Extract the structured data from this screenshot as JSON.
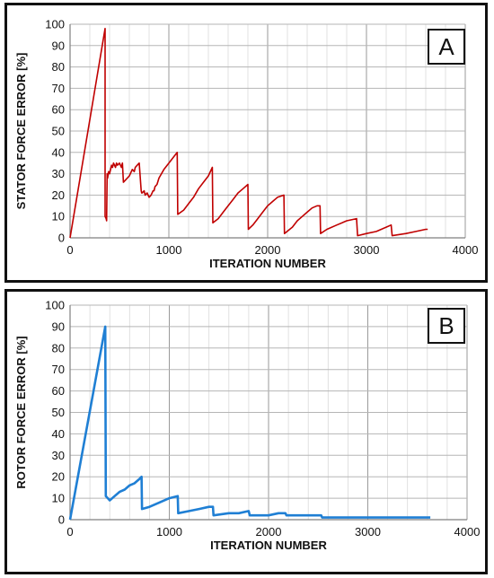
{
  "chart_data": [
    {
      "type": "line",
      "panel_label": "A",
      "xlabel": "ITERATION NUMBER",
      "ylabel": "STATOR FORCE ERROR [%]",
      "xlim": [
        0,
        4000
      ],
      "ylim": [
        0,
        100
      ],
      "xticks": [
        0,
        1000,
        2000,
        3000,
        4000
      ],
      "yticks": [
        0,
        10,
        20,
        30,
        40,
        50,
        60,
        70,
        80,
        90,
        100
      ],
      "grid": true,
      "series": [
        {
          "color": "#c00000",
          "x": [
            0,
            355,
            355,
            365,
            370,
            375,
            380,
            390,
            400,
            420,
            430,
            440,
            460,
            470,
            480,
            500,
            520,
            530,
            540,
            560,
            600,
            620,
            630,
            650,
            660,
            680,
            700,
            720,
            725,
            730,
            750,
            760,
            780,
            800,
            820,
            840,
            850,
            860,
            880,
            900,
            950,
            1000,
            1050,
            1085,
            1090,
            1150,
            1200,
            1250,
            1300,
            1350,
            1400,
            1440,
            1445,
            1500,
            1550,
            1600,
            1650,
            1700,
            1750,
            1800,
            1805,
            1850,
            1900,
            1950,
            2000,
            2050,
            2100,
            2165,
            2170,
            2250,
            2300,
            2350,
            2400,
            2450,
            2500,
            2530,
            2535,
            2600,
            2700,
            2800,
            2900,
            2910,
            3000,
            3100,
            3200,
            3250,
            3260,
            3400,
            3500,
            3600,
            3620
          ],
          "y": [
            0,
            98,
            10,
            9,
            8,
            30,
            28,
            31,
            30,
            34,
            33,
            35,
            33,
            35,
            34,
            35,
            33,
            35,
            26,
            27,
            29,
            31,
            32,
            31,
            33,
            34,
            35,
            22,
            21,
            21,
            22,
            20,
            21,
            19,
            20,
            22,
            22,
            24,
            25,
            28,
            32,
            35,
            38,
            40,
            11,
            13,
            16,
            19,
            23,
            26,
            29,
            33,
            7,
            9,
            12,
            15,
            18,
            21,
            23,
            25,
            4,
            6,
            9,
            12,
            15,
            17,
            19,
            20,
            2,
            5,
            8,
            10,
            12,
            14,
            15,
            15,
            2,
            4,
            6,
            8,
            9,
            1,
            2,
            3,
            5,
            6,
            1,
            2,
            3,
            4,
            4
          ]
        }
      ]
    },
    {
      "type": "line",
      "panel_label": "B",
      "xlabel": "ITERATION NUMBER",
      "ylabel": "ROTOR FORCE ERROR [%]",
      "xlim": [
        0,
        4000
      ],
      "ylim": [
        0,
        100
      ],
      "xticks": [
        0,
        1000,
        2000,
        3000,
        4000
      ],
      "yticks": [
        0,
        10,
        20,
        30,
        40,
        50,
        60,
        70,
        80,
        90,
        100
      ],
      "grid": true,
      "series": [
        {
          "color": "#1f7fd4",
          "x": [
            0,
            355,
            360,
            400,
            450,
            500,
            550,
            600,
            650,
            700,
            720,
            725,
            800,
            900,
            1000,
            1085,
            1090,
            1200,
            1300,
            1400,
            1440,
            1445,
            1600,
            1700,
            1800,
            1810,
            2000,
            2100,
            2170,
            2180,
            2500,
            2530,
            2540,
            3000,
            3600,
            3630
          ],
          "y": [
            0,
            90,
            11,
            9,
            11,
            13,
            14,
            16,
            17,
            19,
            20,
            5,
            6,
            8,
            10,
            11,
            3,
            4,
            5,
            6,
            6,
            2,
            3,
            3,
            4,
            2,
            2,
            3,
            3,
            2,
            2,
            2,
            1,
            1,
            1,
            1
          ]
        }
      ]
    }
  ]
}
